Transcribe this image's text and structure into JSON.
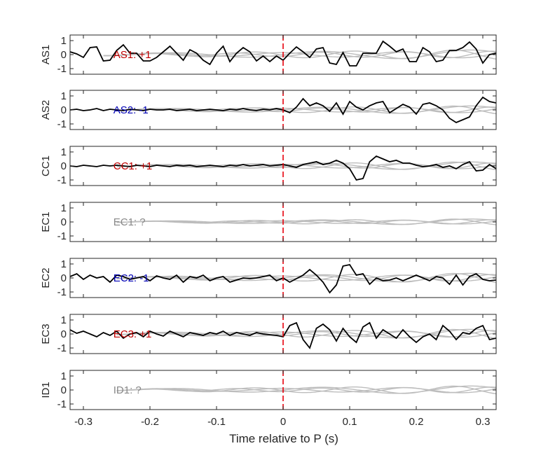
{
  "chart_data": {
    "type": "line",
    "xlabel": "Time relative to P (s)",
    "xlim": [
      -0.32,
      0.32
    ],
    "xticks": [
      -0.3,
      -0.2,
      -0.1,
      0,
      0.1,
      0.2,
      0.3
    ],
    "xtick_labels": [
      "-0.3",
      "-0.2",
      "-0.1",
      "0",
      "0.1",
      "0.2",
      "0.3"
    ],
    "ylim": [
      -1.4,
      1.4
    ],
    "yticks": [
      1,
      0,
      -1
    ],
    "ytick_labels": [
      "1",
      "0",
      "-1"
    ],
    "p_marker": {
      "x": 0,
      "color": "#e8000b",
      "style": "dashed"
    },
    "colors": {
      "positive": "#c00000",
      "negative": "#0000b4",
      "unknown": "#888888",
      "trace": "#000000",
      "synthetic": "#bdbdbd"
    },
    "panels": [
      {
        "name": "AS1",
        "label": "AS1: +1",
        "polarity": "positive",
        "x": [
          -0.32,
          -0.31,
          -0.3,
          -0.29,
          -0.28,
          -0.27,
          -0.26,
          -0.25,
          -0.24,
          -0.23,
          -0.22,
          -0.21,
          -0.2,
          -0.19,
          -0.18,
          -0.17,
          -0.16,
          -0.15,
          -0.14,
          -0.13,
          -0.12,
          -0.11,
          -0.1,
          -0.09,
          -0.08,
          -0.07,
          -0.06,
          -0.05,
          -0.04,
          -0.03,
          -0.02,
          -0.01,
          0,
          0.01,
          0.02,
          0.03,
          0.04,
          0.05,
          0.06,
          0.07,
          0.08,
          0.09,
          0.1,
          0.11,
          0.12,
          0.13,
          0.14,
          0.15,
          0.16,
          0.17,
          0.18,
          0.19,
          0.2,
          0.21,
          0.22,
          0.23,
          0.24,
          0.25,
          0.26,
          0.27,
          0.28,
          0.29,
          0.3,
          0.31,
          0.32
        ],
        "trace": [
          0.2,
          0.05,
          -0.2,
          0.5,
          0.55,
          -0.45,
          -0.4,
          0.3,
          0.7,
          0.1,
          0.1,
          -0.45,
          -0.45,
          -0.2,
          0.2,
          0.6,
          0.1,
          -0.4,
          0.35,
          0.1,
          -0.4,
          -0.7,
          0.1,
          0.6,
          -0.5,
          0.1,
          0.5,
          0.2,
          -0.45,
          -0.1,
          -0.5,
          -0.1,
          -0.4,
          0.1,
          0.55,
          0.2,
          -0.2,
          0.4,
          0.5,
          -0.6,
          -0.7,
          0.15,
          -0.8,
          -0.8,
          0.1,
          0.1,
          0.1,
          0.95,
          0.6,
          0.2,
          0.4,
          -0.5,
          -0.5,
          0.5,
          0.2,
          -0.5,
          -0.4,
          0.3,
          0.3,
          0.5,
          0.9,
          0.4,
          -0.6,
          0.0,
          0.1
        ],
        "synthetic_start": -0.27,
        "synthetic_amp": 0.35
      },
      {
        "name": "AS2",
        "label": "AS2: -1",
        "polarity": "negative",
        "x": [
          -0.32,
          -0.31,
          -0.3,
          -0.29,
          -0.28,
          -0.27,
          -0.26,
          -0.25,
          -0.24,
          -0.23,
          -0.22,
          -0.21,
          -0.2,
          -0.19,
          -0.18,
          -0.17,
          -0.16,
          -0.15,
          -0.14,
          -0.13,
          -0.12,
          -0.11,
          -0.1,
          -0.09,
          -0.08,
          -0.07,
          -0.06,
          -0.05,
          -0.04,
          -0.03,
          -0.02,
          -0.01,
          0,
          0.01,
          0.02,
          0.03,
          0.04,
          0.05,
          0.06,
          0.07,
          0.08,
          0.09,
          0.1,
          0.11,
          0.12,
          0.13,
          0.14,
          0.15,
          0.16,
          0.17,
          0.18,
          0.19,
          0.2,
          0.21,
          0.22,
          0.23,
          0.24,
          0.25,
          0.26,
          0.27,
          0.28,
          0.29,
          0.3,
          0.31,
          0.32
        ],
        "trace": [
          0.0,
          0.05,
          -0.05,
          0.0,
          0.1,
          -0.05,
          0.05,
          0.0,
          -0.05,
          0.05,
          0.0,
          -0.05,
          0.05,
          0.0,
          0.0,
          0.05,
          -0.05,
          0.0,
          0.05,
          -0.05,
          0.0,
          0.05,
          0.0,
          -0.05,
          0.05,
          0.0,
          0.1,
          0.0,
          -0.05,
          0.05,
          0.0,
          0.1,
          0.0,
          -0.2,
          0.2,
          0.8,
          0.3,
          0.5,
          0.3,
          -0.1,
          0.5,
          -0.3,
          0.6,
          0.2,
          0.0,
          0.3,
          0.5,
          0.6,
          -0.2,
          0.1,
          0.4,
          0.2,
          -0.3,
          0.4,
          0.5,
          0.3,
          0.0,
          -0.6,
          -0.9,
          -0.7,
          -0.5,
          0.3,
          0.9,
          0.6,
          0.5
        ],
        "synthetic_start": -0.25,
        "synthetic_amp": 0.3
      },
      {
        "name": "CC1",
        "label": "CC1: +1",
        "polarity": "positive",
        "x": [
          -0.32,
          -0.31,
          -0.3,
          -0.29,
          -0.28,
          -0.27,
          -0.26,
          -0.25,
          -0.24,
          -0.23,
          -0.22,
          -0.21,
          -0.2,
          -0.19,
          -0.18,
          -0.17,
          -0.16,
          -0.15,
          -0.14,
          -0.13,
          -0.12,
          -0.11,
          -0.1,
          -0.09,
          -0.08,
          -0.07,
          -0.06,
          -0.05,
          -0.04,
          -0.03,
          -0.02,
          -0.01,
          0,
          0.01,
          0.02,
          0.03,
          0.04,
          0.05,
          0.06,
          0.07,
          0.08,
          0.09,
          0.1,
          0.11,
          0.12,
          0.13,
          0.14,
          0.15,
          0.16,
          0.17,
          0.18,
          0.19,
          0.2,
          0.21,
          0.22,
          0.23,
          0.24,
          0.25,
          0.26,
          0.27,
          0.28,
          0.29,
          0.3,
          0.31,
          0.32
        ],
        "trace": [
          0.0,
          -0.05,
          0.05,
          0.0,
          -0.05,
          0.05,
          0.0,
          0.05,
          0.0,
          -0.05,
          0.05,
          0.0,
          -0.05,
          0.05,
          0.0,
          -0.05,
          0.05,
          0.0,
          0.05,
          -0.05,
          0.0,
          0.05,
          0.0,
          -0.05,
          0.05,
          0.0,
          0.1,
          0.0,
          0.05,
          0.1,
          0.0,
          0.05,
          0.1,
          0.0,
          -0.1,
          0.1,
          0.2,
          0.3,
          0.1,
          0.2,
          0.4,
          0.2,
          -0.2,
          -1.0,
          -0.9,
          0.3,
          0.7,
          0.5,
          0.3,
          0.4,
          0.2,
          0.2,
          0.05,
          -0.05,
          0.0,
          0.1,
          -0.1,
          0.0,
          -0.2,
          0.1,
          0.3,
          -0.35,
          -0.3,
          0.1,
          -0.2
        ],
        "synthetic_start": -0.25,
        "synthetic_amp": 0.3
      },
      {
        "name": "EC1",
        "label": "EC1: ?",
        "polarity": "unknown",
        "x": [],
        "trace": [],
        "synthetic_start": -0.25,
        "synthetic_amp": 0.22
      },
      {
        "name": "EC2",
        "label": "EC2: -1",
        "polarity": "negative",
        "x": [
          -0.32,
          -0.31,
          -0.3,
          -0.29,
          -0.28,
          -0.27,
          -0.26,
          -0.25,
          -0.24,
          -0.23,
          -0.22,
          -0.21,
          -0.2,
          -0.19,
          -0.18,
          -0.17,
          -0.16,
          -0.15,
          -0.14,
          -0.13,
          -0.12,
          -0.11,
          -0.1,
          -0.09,
          -0.08,
          -0.07,
          -0.06,
          -0.05,
          -0.04,
          -0.03,
          -0.02,
          -0.01,
          0,
          0.01,
          0.02,
          0.03,
          0.04,
          0.05,
          0.06,
          0.07,
          0.08,
          0.09,
          0.1,
          0.11,
          0.12,
          0.13,
          0.14,
          0.15,
          0.16,
          0.17,
          0.18,
          0.19,
          0.2,
          0.21,
          0.22,
          0.23,
          0.24,
          0.25,
          0.26,
          0.27,
          0.28,
          0.29,
          0.3,
          0.31,
          0.32
        ],
        "trace": [
          0.1,
          0.3,
          -0.1,
          0.2,
          0.0,
          0.1,
          -0.3,
          0.2,
          0.1,
          -0.1,
          0.0,
          0.1,
          -0.2,
          0.15,
          0.0,
          -0.1,
          0.2,
          -0.3,
          0.1,
          0.0,
          0.2,
          -0.2,
          0.0,
          0.1,
          -0.3,
          -0.15,
          0.0,
          -0.05,
          0.0,
          0.1,
          0.2,
          -0.2,
          0.0,
          -0.3,
          -0.05,
          0.2,
          0.6,
          0.2,
          -0.3,
          -1.05,
          -0.5,
          0.85,
          0.95,
          0.2,
          0.3,
          -0.45,
          0.0,
          -0.2,
          -0.15,
          0.0,
          -0.2,
          0.0,
          0.2,
          0.0,
          -0.2,
          0.1,
          0.0,
          -0.45,
          0.2,
          -0.5,
          0.1,
          0.3,
          -0.1,
          -0.2,
          -0.15
        ],
        "synthetic_start": -0.25,
        "synthetic_amp": 0.35
      },
      {
        "name": "EC3",
        "label": "EC3: +1",
        "polarity": "positive",
        "x": [
          -0.32,
          -0.31,
          -0.3,
          -0.29,
          -0.28,
          -0.27,
          -0.26,
          -0.25,
          -0.24,
          -0.23,
          -0.22,
          -0.21,
          -0.2,
          -0.19,
          -0.18,
          -0.17,
          -0.16,
          -0.15,
          -0.14,
          -0.13,
          -0.12,
          -0.11,
          -0.1,
          -0.09,
          -0.08,
          -0.07,
          -0.06,
          -0.05,
          -0.04,
          -0.03,
          -0.02,
          -0.01,
          0,
          0.01,
          0.02,
          0.03,
          0.04,
          0.05,
          0.06,
          0.07,
          0.08,
          0.09,
          0.1,
          0.11,
          0.12,
          0.13,
          0.14,
          0.15,
          0.16,
          0.17,
          0.18,
          0.19,
          0.2,
          0.21,
          0.22,
          0.23,
          0.24,
          0.25,
          0.26,
          0.27,
          0.28,
          0.29,
          0.3,
          0.31,
          0.32
        ],
        "trace": [
          0.3,
          0.05,
          0.2,
          0.0,
          -0.2,
          0.1,
          -0.1,
          0.2,
          -0.3,
          0.0,
          0.1,
          -0.2,
          0.2,
          0.0,
          -0.15,
          0.2,
          0.0,
          -0.2,
          0.1,
          0.0,
          -0.1,
          0.1,
          0.0,
          0.2,
          -0.1,
          0.1,
          0.0,
          -0.1,
          0.1,
          0.0,
          -0.05,
          -0.1,
          -0.2,
          0.6,
          0.8,
          -0.4,
          -1.0,
          0.4,
          0.7,
          0.3,
          -0.5,
          0.4,
          -0.2,
          -0.6,
          0.5,
          0.8,
          -0.3,
          0.3,
          0.0,
          -0.3,
          0.3,
          -0.2,
          -0.6,
          -0.2,
          0.0,
          -0.4,
          0.6,
          0.2,
          -0.4,
          0.1,
          0.0,
          0.4,
          0.6,
          -0.4,
          -0.3
        ],
        "synthetic_start": -0.25,
        "synthetic_amp": 0.35
      },
      {
        "name": "ID1",
        "label": "ID1: ?",
        "polarity": "unknown",
        "x": [],
        "trace": [],
        "synthetic_start": -0.25,
        "synthetic_amp": 0.3
      }
    ]
  }
}
